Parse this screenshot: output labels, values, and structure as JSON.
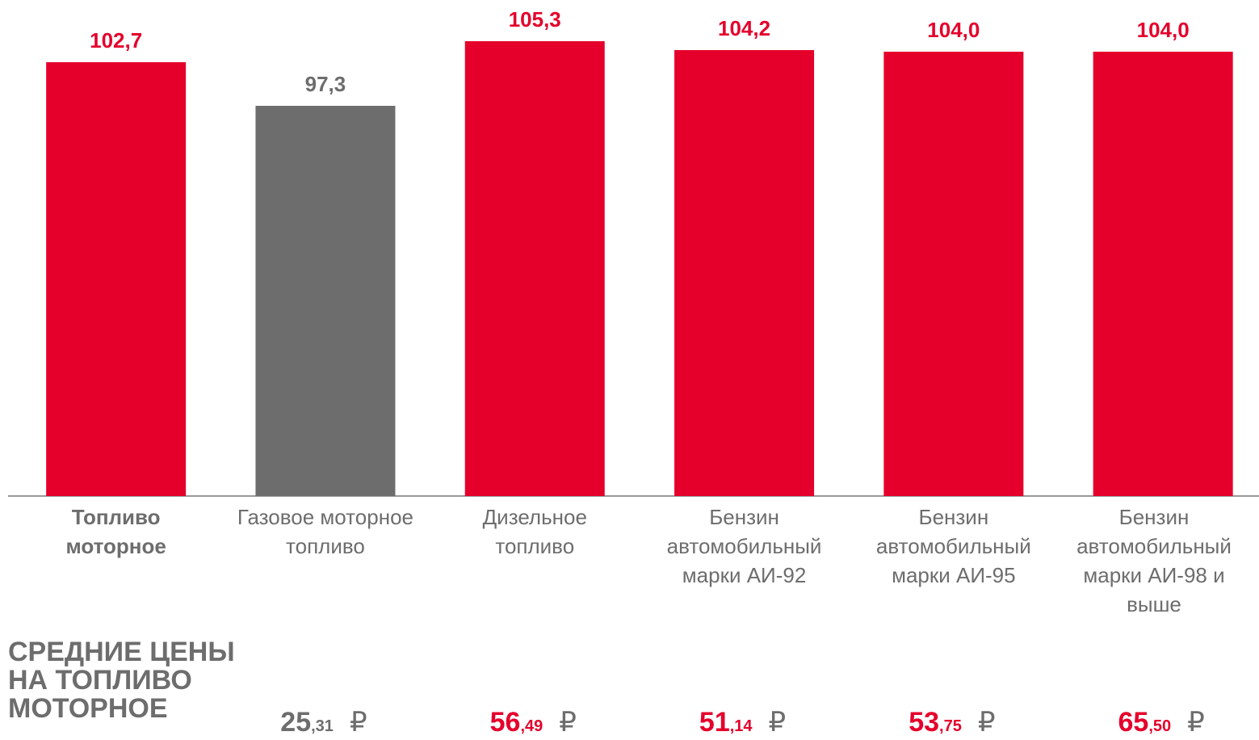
{
  "chart_data": {
    "type": "bar",
    "categories": [
      "Топливо\nмоторное",
      "Газовое моторное\nтопливо",
      "Дизельное\nтопливо",
      "Бензин\nавтомобильный\nмарки АИ-92",
      "Бензин\nавтомобильный\nмарки АИ-95",
      "Бензин\nавтомобильный\nмарки АИ-98 и\nвыше"
    ],
    "values": [
      102.7,
      97.3,
      105.3,
      104.2,
      104.0,
      104.0
    ],
    "value_labels": [
      "102,7",
      "97,3",
      "105,3",
      "104,2",
      "104,0",
      "104,0"
    ],
    "colors": [
      "#e4002b",
      "#6d6d6d",
      "#e4002b",
      "#e4002b",
      "#e4002b",
      "#e4002b"
    ],
    "bold_categories": [
      0
    ],
    "ylim": [
      49,
      110
    ]
  },
  "prices": {
    "title": "СРЕДНИЕ ЦЕНЫ\nНА ТОПЛИВО\nМОТОРНОЕ",
    "currency": "₽",
    "values": [
      25.31,
      56.49,
      51.14,
      53.75,
      65.5
    ],
    "value_labels": [
      "25,31",
      "56,49",
      "51,14",
      "53,75",
      "65,50"
    ],
    "colors": [
      "#6d6d6d",
      "#e4002b",
      "#e4002b",
      "#e4002b",
      "#e4002b"
    ]
  }
}
